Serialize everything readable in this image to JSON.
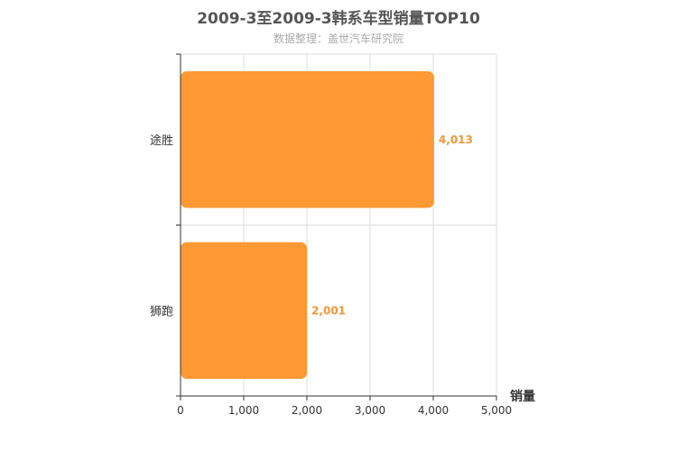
{
  "title": "2009-3至2009-3韩系车型销量TOP10",
  "subtitle": "数据整理：盖世汽车研究院",
  "colors": {
    "bar": "#ff9933",
    "label": "#f0963c",
    "axis": "#333333",
    "grid": "#dddddd",
    "text": "#333333"
  },
  "chart_data": {
    "type": "bar",
    "orientation": "horizontal",
    "title": "2009-3至2009-3韩系车型销量TOP10",
    "subtitle": "数据整理：盖世汽车研究院",
    "categories": [
      "途胜",
      "狮跑"
    ],
    "values": [
      4013,
      2001
    ],
    "value_labels": [
      "4,013",
      "2,001"
    ],
    "xlabel": "销量",
    "ylabel": "",
    "xlim": [
      0,
      5000
    ],
    "xticks": [
      0,
      1000,
      2000,
      3000,
      4000,
      5000
    ],
    "xtick_labels": [
      "0",
      "1,000",
      "2,000",
      "3,000",
      "4,000",
      "5,000"
    ],
    "grid": true,
    "legend": "none"
  }
}
